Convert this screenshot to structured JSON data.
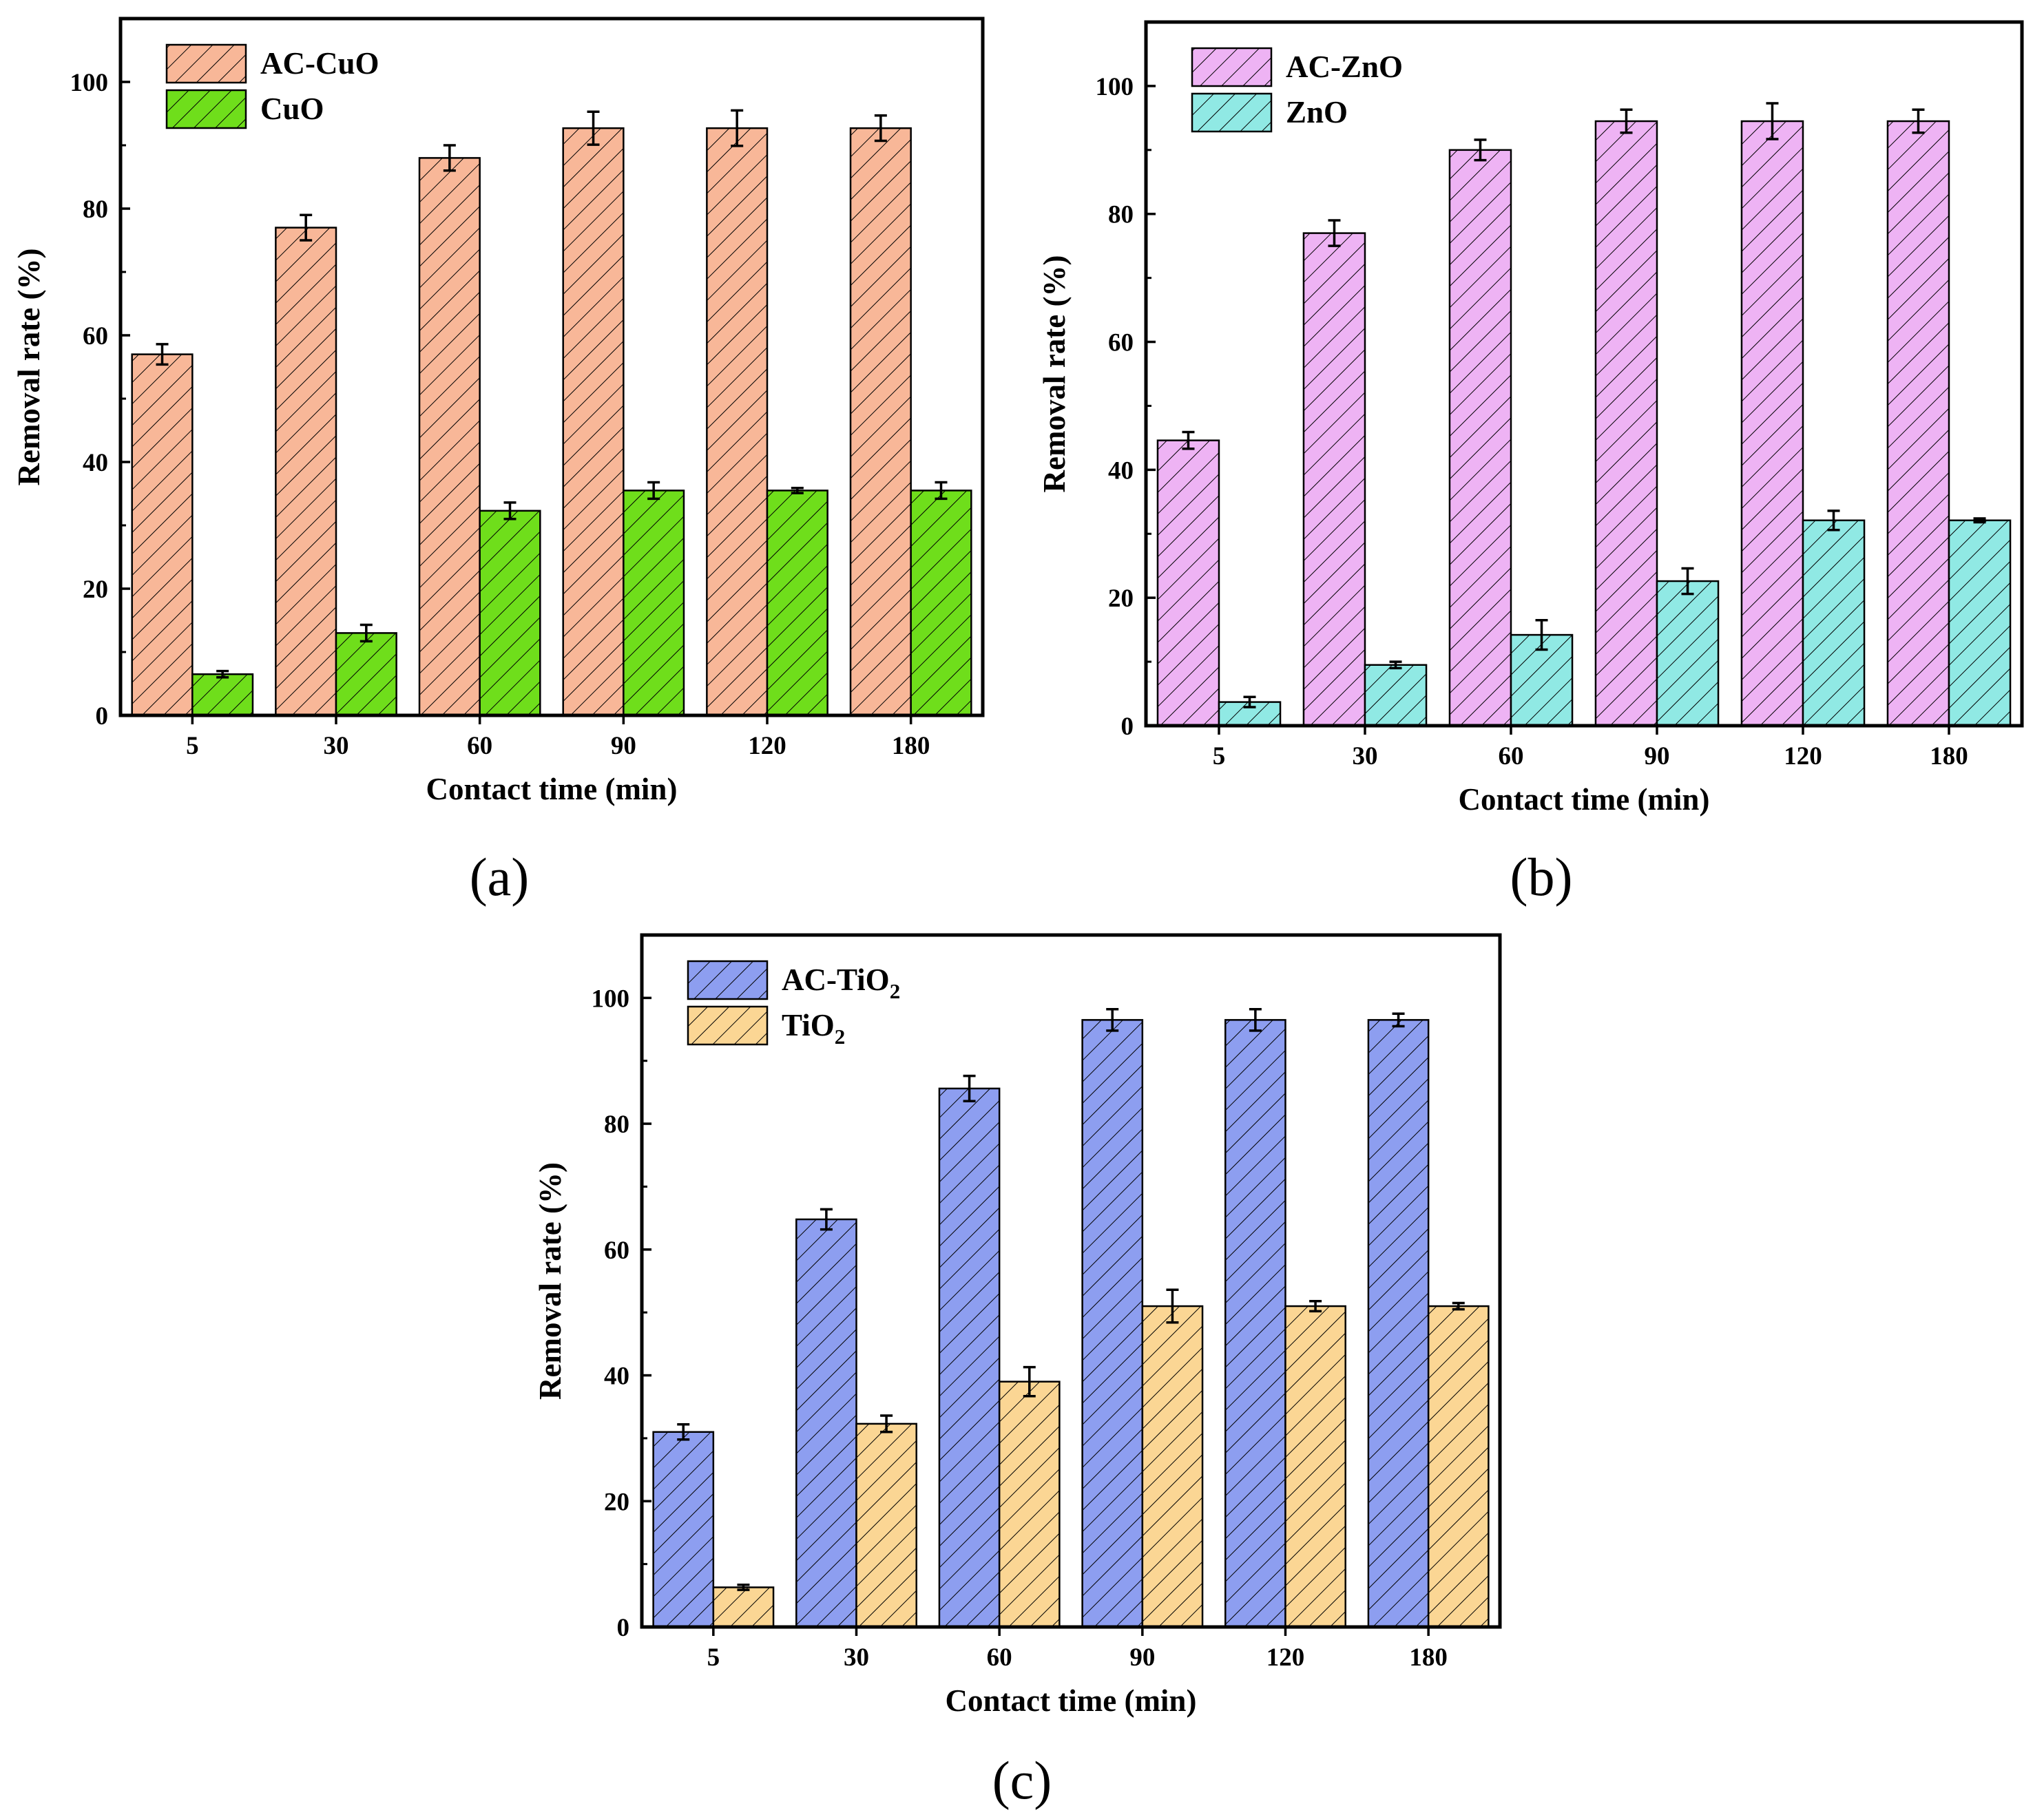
{
  "chart_data": [
    {
      "type": "bar",
      "panel_label": "(a)",
      "xlabel": "Contact time (min)",
      "ylabel": "Removal rate (%)",
      "ylim": [
        0,
        110
      ],
      "yticks": [
        0,
        20,
        40,
        60,
        80,
        100
      ],
      "categories": [
        "5",
        "30",
        "60",
        "90",
        "120",
        "180"
      ],
      "grid": false,
      "legend_position": "top-left",
      "hatch": "diagonal",
      "series": [
        {
          "name": "AC-CuO",
          "name_main": "AC-CuO",
          "name_sub": "",
          "color": "#f8b798",
          "values": [
            57,
            77,
            88,
            92.7,
            92.7,
            92.7
          ],
          "errors": [
            1.6,
            2.0,
            2.0,
            2.6,
            2.8,
            2.0
          ]
        },
        {
          "name": "CuO",
          "name_main": "CuO",
          "name_sub": "",
          "color": "#6fde1b",
          "values": [
            6.5,
            13,
            32.3,
            35.5,
            35.5,
            35.5
          ],
          "errors": [
            0.5,
            1.3,
            1.3,
            1.3,
            0.4,
            1.3
          ]
        }
      ]
    },
    {
      "type": "bar",
      "panel_label": "(b)",
      "xlabel": "Contact time (min)",
      "ylabel": "Removal rate (%)",
      "ylim": [
        0,
        110
      ],
      "yticks": [
        0,
        20,
        40,
        60,
        80,
        100
      ],
      "categories": [
        "5",
        "30",
        "60",
        "90",
        "120",
        "180"
      ],
      "grid": false,
      "legend_position": "top-left",
      "hatch": "diagonal",
      "series": [
        {
          "name": "AC-ZnO",
          "name_main": "AC-ZnO",
          "name_sub": "",
          "color": "#eeb3f4",
          "values": [
            44.6,
            77,
            90,
            94.5,
            94.5,
            94.5
          ],
          "errors": [
            1.3,
            2.0,
            1.6,
            1.8,
            2.8,
            1.8
          ]
        },
        {
          "name": "ZnO",
          "name_main": "ZnO",
          "name_sub": "",
          "color": "#90e9e4",
          "values": [
            3.7,
            9.5,
            14.2,
            22.6,
            32.1,
            32.1
          ],
          "errors": [
            0.8,
            0.5,
            2.3,
            2.0,
            1.5,
            0.3
          ]
        }
      ]
    },
    {
      "type": "bar",
      "panel_label": "(c)",
      "xlabel": "Contact time (min)",
      "ylabel": "Removal rate (%)",
      "ylim": [
        0,
        110
      ],
      "yticks": [
        0,
        20,
        40,
        60,
        80,
        100
      ],
      "categories": [
        "5",
        "30",
        "60",
        "90",
        "120",
        "180"
      ],
      "grid": false,
      "legend_position": "top-left",
      "hatch": "diagonal",
      "series": [
        {
          "name": "AC-TiO2",
          "name_main": "AC-TiO",
          "name_sub": "2",
          "color": "#8d9ef0",
          "values": [
            31,
            64.8,
            85.6,
            96.5,
            96.5,
            96.5
          ],
          "errors": [
            1.2,
            1.6,
            2.0,
            1.7,
            1.7,
            1.0
          ]
        },
        {
          "name": "TiO2",
          "name_main": "TiO",
          "name_sub": "2",
          "color": "#fbd694",
          "values": [
            6.3,
            32.3,
            39,
            51,
            51,
            51
          ],
          "errors": [
            0.4,
            1.3,
            2.3,
            2.6,
            0.8,
            0.5
          ]
        }
      ]
    }
  ]
}
